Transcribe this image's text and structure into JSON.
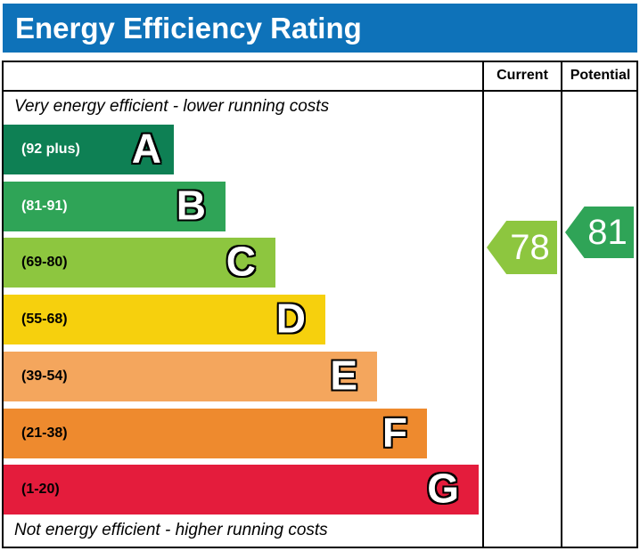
{
  "title": "Energy Efficiency Rating",
  "header_bar_color": "#0e72b9",
  "columns": {
    "current": "Current",
    "potential": "Potential"
  },
  "notes": {
    "top": "Very energy efficient - lower running costs",
    "bottom": "Not energy efficient - higher running costs"
  },
  "chart_data": {
    "type": "bar",
    "title": "Energy Efficiency Rating",
    "categories": [
      "A",
      "B",
      "C",
      "D",
      "E",
      "F",
      "G"
    ],
    "bands": [
      {
        "letter": "A",
        "range": "(92 plus)",
        "min": 92,
        "max": 100,
        "color": "#0e8054",
        "label_color": "#ffffff"
      },
      {
        "letter": "B",
        "range": "(81-91)",
        "min": 81,
        "max": 91,
        "color": "#2fa457",
        "label_color": "#ffffff"
      },
      {
        "letter": "C",
        "range": "(69-80)",
        "min": 69,
        "max": 80,
        "color": "#8dc63f",
        "label_color": "#000000"
      },
      {
        "letter": "D",
        "range": "(55-68)",
        "min": 55,
        "max": 68,
        "color": "#f6d00d",
        "label_color": "#000000"
      },
      {
        "letter": "E",
        "range": "(39-54)",
        "min": 39,
        "max": 54,
        "color": "#f4a65d",
        "label_color": "#000000"
      },
      {
        "letter": "F",
        "range": "(21-38)",
        "min": 21,
        "max": 38,
        "color": "#ee8a2e",
        "label_color": "#000000"
      },
      {
        "letter": "G",
        "range": "(1-20)",
        "min": 1,
        "max": 20,
        "color": "#e41c3c",
        "label_color": "#000000"
      }
    ],
    "current": {
      "label": "Current",
      "value": "78",
      "band": "C",
      "color": "#8dc63f"
    },
    "potential": {
      "label": "Potential",
      "value": "81",
      "band": "B",
      "color": "#2fa457"
    }
  }
}
